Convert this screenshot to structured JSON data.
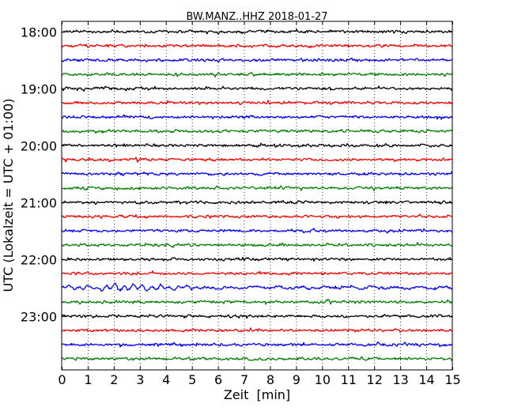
{
  "chart_data": {
    "type": "line",
    "title": "BW.MANZ..HHZ 2018-01-27",
    "xlabel": "Zeit  [min]",
    "ylabel": "UTC (Lokalzeit = UTC + 01:00)",
    "xlim": [
      0,
      15
    ],
    "x_ticks": [
      "0",
      "1",
      "2",
      "3",
      "4",
      "5",
      "6",
      "7",
      "8",
      "9",
      "10",
      "11",
      "12",
      "13",
      "14",
      "15"
    ],
    "y_ticks": [
      "18:00",
      "19:00",
      "20:00",
      "21:00",
      "22:00",
      "23:00"
    ],
    "grid": "vertical dotted",
    "trace_interval_min": 15,
    "trace_colors": [
      "#000000",
      "#ff0000",
      "#0000ff",
      "#007f00"
    ],
    "traces": [
      {
        "start": "18:00",
        "color": "#000000"
      },
      {
        "start": "18:15",
        "color": "#ff0000"
      },
      {
        "start": "18:30",
        "color": "#0000ff"
      },
      {
        "start": "18:45",
        "color": "#007f00"
      },
      {
        "start": "19:00",
        "color": "#000000"
      },
      {
        "start": "19:15",
        "color": "#ff0000"
      },
      {
        "start": "19:30",
        "color": "#0000ff"
      },
      {
        "start": "19:45",
        "color": "#007f00"
      },
      {
        "start": "20:00",
        "color": "#000000"
      },
      {
        "start": "20:15",
        "color": "#ff0000"
      },
      {
        "start": "20:30",
        "color": "#0000ff"
      },
      {
        "start": "20:45",
        "color": "#007f00"
      },
      {
        "start": "21:00",
        "color": "#000000"
      },
      {
        "start": "21:15",
        "color": "#ff0000"
      },
      {
        "start": "21:30",
        "color": "#0000ff"
      },
      {
        "start": "21:45",
        "color": "#007f00"
      },
      {
        "start": "22:00",
        "color": "#000000"
      },
      {
        "start": "22:15",
        "color": "#ff0000"
      },
      {
        "start": "22:30",
        "color": "#0000ff"
      },
      {
        "start": "22:45",
        "color": "#007f00"
      },
      {
        "start": "23:00",
        "color": "#000000"
      },
      {
        "start": "23:15",
        "color": "#ff0000"
      },
      {
        "start": "23:30",
        "color": "#0000ff"
      },
      {
        "start": "23:45",
        "color": "#007f00"
      }
    ]
  }
}
